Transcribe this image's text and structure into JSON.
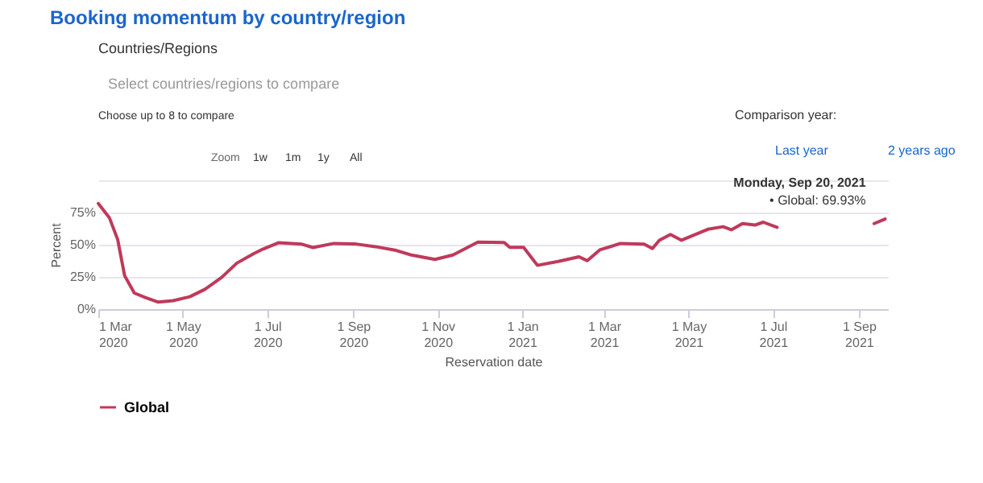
{
  "chart_data": {
    "type": "line",
    "title": "Booking momentum by country/region",
    "xlabel": "Reservation date",
    "ylabel": "Percent",
    "x": [
      "2020-03-01",
      "2020-03-09",
      "2020-03-15",
      "2020-03-20",
      "2020-03-27",
      "2020-04-04",
      "2020-04-13",
      "2020-04-24",
      "2020-05-06",
      "2020-05-17",
      "2020-05-29",
      "2020-06-09",
      "2020-06-21",
      "2020-06-28",
      "2020-07-09",
      "2020-07-26",
      "2020-08-03",
      "2020-08-18",
      "2020-09-02",
      "2020-09-17",
      "2020-10-02",
      "2020-10-13",
      "2020-10-30",
      "2020-11-12",
      "2020-11-30",
      "2020-12-19",
      "2020-12-23",
      "2021-01-02",
      "2021-01-12",
      "2021-01-27",
      "2021-02-11",
      "2021-02-17",
      "2021-02-26",
      "2021-03-13",
      "2021-03-30",
      "2021-04-05",
      "2021-04-10",
      "2021-04-18",
      "2021-04-26",
      "2021-05-15",
      "2021-05-26",
      "2021-06-01",
      "2021-06-09",
      "2021-06-18",
      "2021-06-24",
      "2021-07-04",
      "2021-08-10",
      "2021-09-12",
      "2021-09-20"
    ],
    "series": [
      {
        "name": "Global",
        "color": "#c0395b",
        "values": [
          82,
          71,
          54,
          26,
          12.5,
          9,
          5.5,
          6.6,
          9.6,
          15.4,
          24.6,
          35.7,
          43,
          46.7,
          51.5,
          50.4,
          47.8,
          51,
          50.7,
          48.5,
          45.6,
          42,
          38.6,
          42,
          52,
          51.7,
          48,
          48,
          34,
          37,
          40.6,
          37.6,
          46,
          51,
          50.5,
          47,
          53.5,
          58,
          53.5,
          62,
          64,
          61.6,
          66.4,
          65.3,
          67.5,
          63.5,
          null,
          66.4,
          69.93
        ]
      }
    ],
    "xlim": [
      "2020-03-01",
      "2021-09-22"
    ],
    "xticks": [
      {
        "value": "2020-03-01",
        "label": "1 Mar 2020"
      },
      {
        "value": "2020-05-01",
        "label": "1 May 2020"
      },
      {
        "value": "2020-07-01",
        "label": "1 Jul 2020"
      },
      {
        "value": "2020-09-01",
        "label": "1 Sep 2020"
      },
      {
        "value": "2020-11-01",
        "label": "1 Nov 2020"
      },
      {
        "value": "2021-01-01",
        "label": "1 Jan 2021"
      },
      {
        "value": "2021-03-01",
        "label": "1 Mar 2021"
      },
      {
        "value": "2021-05-01",
        "label": "1 May 2021"
      },
      {
        "value": "2021-07-01",
        "label": "1 Jul 2021"
      },
      {
        "value": "2021-09-01",
        "label": "1 Sep 2021"
      }
    ],
    "ylim": [
      0,
      100
    ],
    "yticks": [
      {
        "value": 0,
        "label": "0%"
      },
      {
        "value": 25,
        "label": "25%"
      },
      {
        "value": 50,
        "label": "50%"
      },
      {
        "value": 75,
        "label": "75%"
      },
      {
        "value": 100,
        "label": null
      }
    ],
    "grid": "y",
    "legend": "bottom",
    "annotations": [
      "Countries/Regions",
      "Select countries/regions to compare",
      "Choose up to 8 to compare",
      "Zoom",
      "1w",
      "1m",
      "1y",
      "All",
      "Comparison year:",
      "Last year",
      "2 years ago",
      {
        "text": "Monday, Sep 20, 2021",
        "x": "2021-09-20",
        "y": 69.93
      },
      {
        "text": "• Global: 69.93%",
        "x": "2021-09-20",
        "y": 69.93
      }
    ]
  }
}
